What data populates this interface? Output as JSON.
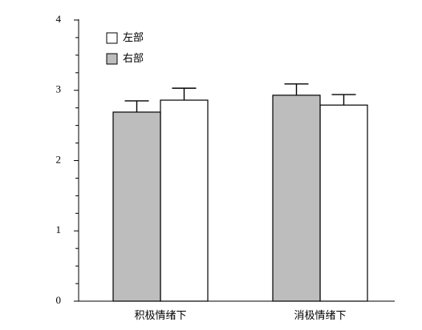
{
  "chart_data": {
    "type": "bar",
    "categories": [
      "积极情绪下",
      "消极情绪下"
    ],
    "series": [
      {
        "name": "左部",
        "color": "#ffffff",
        "values": [
          2.86,
          2.79
        ],
        "errors": [
          0.17,
          0.15
        ]
      },
      {
        "name": "右部",
        "color": "#bdbdbd",
        "values": [
          2.69,
          2.93
        ],
        "errors": [
          0.16,
          0.16
        ]
      }
    ],
    "ylim": [
      0,
      4
    ],
    "yticks": [
      0,
      1,
      2,
      3,
      4
    ],
    "minor_yticks": [
      0.25,
      0.5,
      0.75,
      1.25,
      1.5,
      1.75,
      2.25,
      2.5,
      2.75,
      3.25,
      3.5,
      3.75
    ],
    "legend": "upper left"
  }
}
